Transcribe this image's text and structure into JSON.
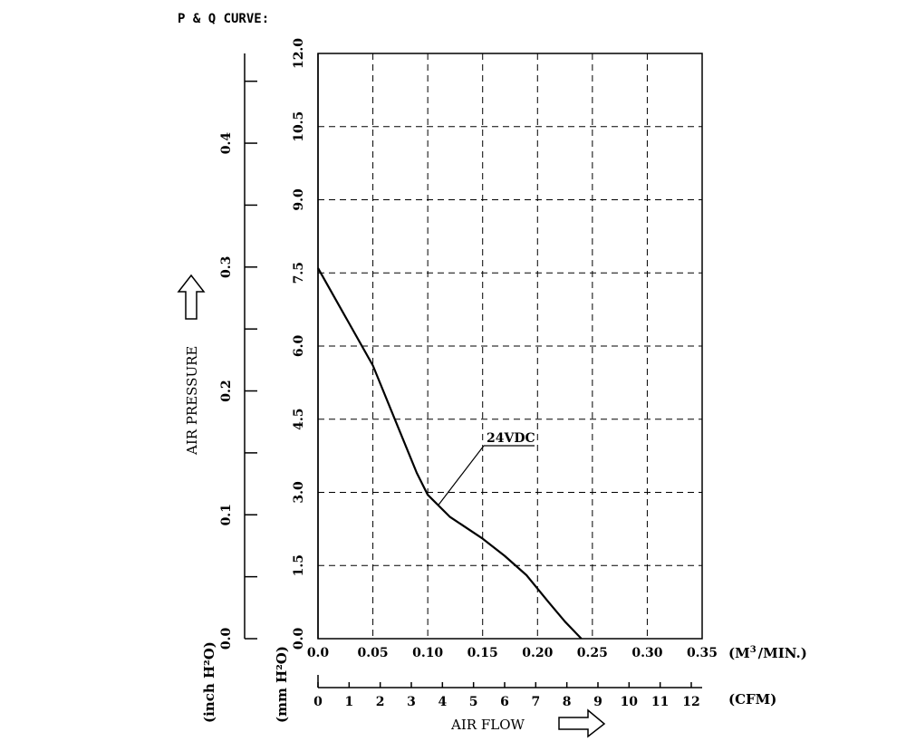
{
  "title": "P & Q CURVE:",
  "chart_data": {
    "type": "line",
    "title": "P & Q CURVE:",
    "xlabel": "AIR FLOW",
    "ylabel": "AIR PRESSURE",
    "x_unit": "(M³/MIN.)",
    "x_unit_base": "(M",
    "x_unit_sup": "3",
    "x_unit_tail": "/MIN.)",
    "x2_unit": "(CFM)",
    "y_unit_mm": "(mm H²O)",
    "y_unit_inch": "(inch H²O)",
    "xlim": [
      0,
      0.35
    ],
    "ylim": [
      0,
      12.0
    ],
    "x_ticks": [
      "0.0",
      "0.05",
      "0.10",
      "0.15",
      "0.20",
      "0.25",
      "0.30",
      "0.35"
    ],
    "y_ticks_mm": [
      "0.0",
      "1.5",
      "3.0",
      "4.5",
      "6.0",
      "7.5",
      "9.0",
      "10.5",
      "12.0"
    ],
    "y_ticks_inch": [
      "0.0",
      "0.1",
      "0.2",
      "0.3",
      "0.4"
    ],
    "inch_minor_step": 0.05,
    "inch_max": 0.47,
    "cfm_ticks": [
      "0",
      "1",
      "2",
      "3",
      "4",
      "5",
      "6",
      "7",
      "8",
      "9",
      "10",
      "11",
      "12"
    ],
    "grid": true,
    "series": [
      {
        "name": "24VDC",
        "x": [
          0.0,
          0.02,
          0.05,
          0.07,
          0.09,
          0.1,
          0.12,
          0.15,
          0.17,
          0.19,
          0.21,
          0.225,
          0.24
        ],
        "y": [
          7.6,
          6.8,
          5.6,
          4.5,
          3.4,
          2.95,
          2.5,
          2.05,
          1.7,
          1.3,
          0.75,
          0.35,
          0.0
        ]
      }
    ],
    "annotations": [
      {
        "text": "24VDC",
        "points_to": {
          "x": 0.11,
          "y": 2.75
        }
      }
    ]
  }
}
